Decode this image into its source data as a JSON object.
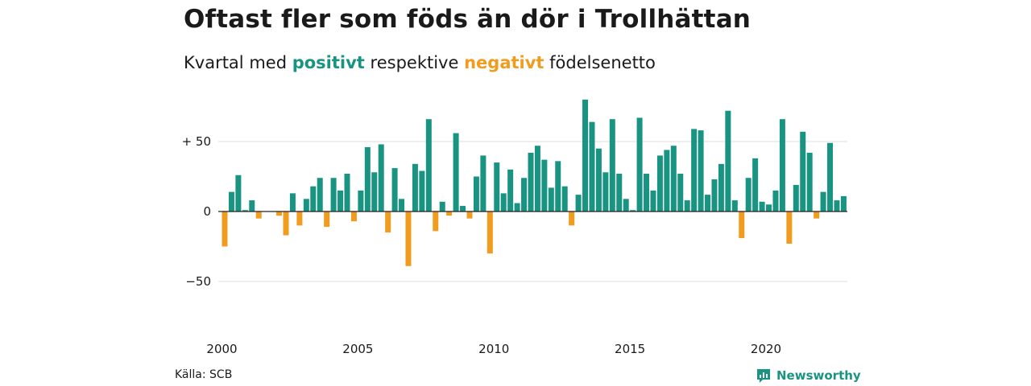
{
  "header": {
    "title": "Oftast fler som föds än dör i Trollhättan",
    "subtitle_prefix": "Kvartal med",
    "subtitle_positive": "positivt",
    "subtitle_middle": "respektive",
    "subtitle_negative": "negativt",
    "subtitle_suffix": "födelsenetto"
  },
  "footer": {
    "source": "Källa: SCB",
    "brand": "Newsworthy"
  },
  "colors": {
    "positive": "#1a9482",
    "negative": "#f29c1f",
    "grid": "#dddddd",
    "zero_line": "#222222"
  },
  "chart_data": {
    "type": "bar",
    "x_start_year": 2000,
    "periods_per_year": 4,
    "ylim": [
      -70,
      80
    ],
    "yticks": [
      {
        "value": 50,
        "label": "+ 50"
      },
      {
        "value": 0,
        "label": "0"
      },
      {
        "value": -50,
        "label": "−50"
      }
    ],
    "xticks": [
      "2000",
      "2005",
      "2010",
      "2015",
      "2020"
    ],
    "grid": true,
    "values": [
      -25,
      14,
      26,
      1,
      8,
      -5,
      0,
      0,
      -3,
      -17,
      13,
      -10,
      9,
      18,
      24,
      -11,
      24,
      15,
      27,
      -7,
      15,
      46,
      28,
      48,
      -15,
      31,
      9,
      -39,
      34,
      29,
      66,
      -14,
      7,
      -3,
      56,
      4,
      -5,
      25,
      40,
      -30,
      35,
      13,
      30,
      6,
      24,
      42,
      47,
      37,
      17,
      36,
      18,
      -10,
      12,
      80,
      64,
      45,
      28,
      66,
      27,
      9,
      1,
      67,
      27,
      15,
      40,
      44,
      47,
      27,
      8,
      59,
      58,
      12,
      23,
      34,
      72,
      8,
      -19,
      24,
      38,
      7,
      5,
      15,
      66,
      -23,
      19,
      57,
      42,
      -5,
      14,
      49,
      8,
      11
    ]
  }
}
